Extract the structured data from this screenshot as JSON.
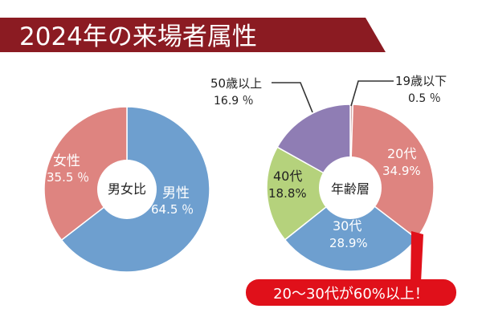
{
  "header": {
    "title": "2024年の来場者属性",
    "color": "#8b1b22"
  },
  "chart_data": [
    {
      "type": "pie",
      "center_label": "男女比",
      "slices": [
        {
          "name": "男性",
          "value": 64.5,
          "value_text": "64.5 ％",
          "color": "#6e9fcf"
        },
        {
          "name": "女性",
          "value": 35.5,
          "value_text": "35.5 ％",
          "color": "#de8480"
        }
      ]
    },
    {
      "type": "pie",
      "center_label": "年齢層",
      "slices": [
        {
          "name": "19歳以下",
          "value": 0.5,
          "value_text": "0.5 ％",
          "color": "#d0a8a8"
        },
        {
          "name": "20代",
          "value": 34.9,
          "value_text": "34.9%",
          "color": "#de8480"
        },
        {
          "name": "30代",
          "value": 28.9,
          "value_text": "28.9%",
          "color": "#6e9fcf"
        },
        {
          "name": "40代",
          "value": 18.8,
          "value_text": "18.8%",
          "color": "#b5d27c"
        },
        {
          "name": "50歳以上",
          "value": 16.9,
          "value_text": "16.9 ％",
          "color": "#8f7db4"
        }
      ]
    }
  ],
  "callout": {
    "text": "20〜30代が60%以上！",
    "color": "#e0101a"
  }
}
